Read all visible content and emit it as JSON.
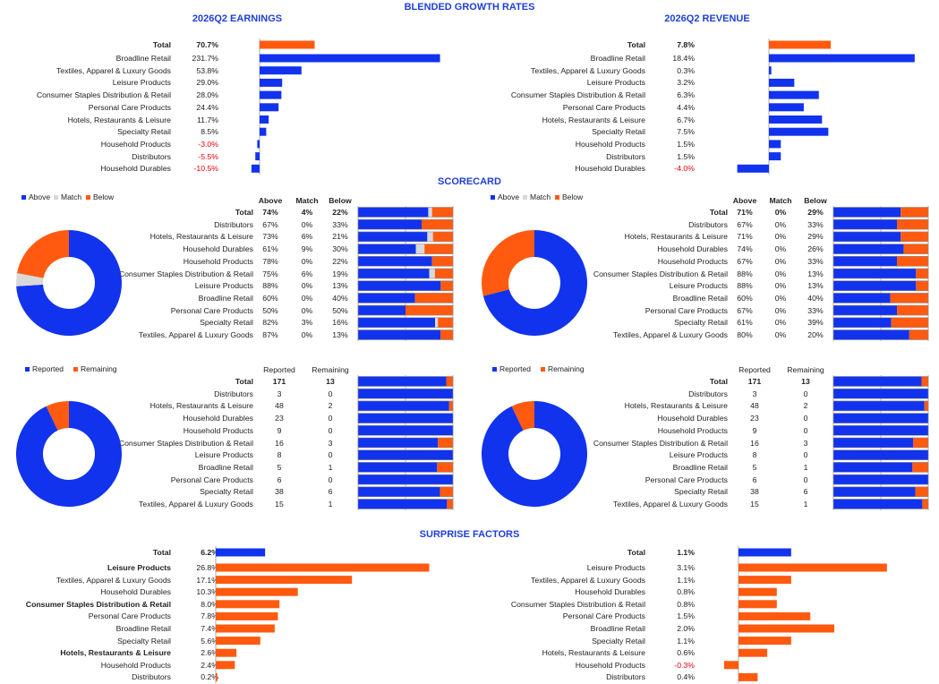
{
  "colors": {
    "above": "#1133ee",
    "match": "#d9d9d9",
    "below": "#ff5a0f",
    "reported": "#1133ee",
    "remaining": "#ff5a0f",
    "neg_text": "#e8000b",
    "header": "#1f3fd6"
  },
  "headers": {
    "main": "BLENDED GROWTH RATES",
    "earnings": "2026Q2 EARNINGS",
    "revenue": "2026Q2 REVENUE",
    "scorecard": "SCORECARD",
    "surprise": "SURPRISE FACTORS"
  },
  "legends": {
    "score": [
      "Above",
      "Match",
      "Below"
    ],
    "report": [
      "Reported",
      "Remaining"
    ]
  },
  "score_cols": [
    "Above",
    "Match",
    "Below"
  ],
  "report_cols": [
    "Reported",
    "Remaining"
  ],
  "chart_data": [
    {
      "type": "bar",
      "id": "earnings_growth",
      "categories": [
        "Total",
        "Broadline Retail",
        "Textiles, Apparel & Luxury Goods",
        "Leisure Products",
        "Consumer Staples Distribution & Retail",
        "Personal Care Products",
        "Hotels, Restaurants & Leisure",
        "Specialty Retail",
        "Household Products",
        "Distributors",
        "Household Durables"
      ],
      "labels": [
        "70.7%",
        "231.7%",
        "53.8%",
        "29.0%",
        "28.0%",
        "24.4%",
        "11.7%",
        "8.5%",
        "-3.0%",
        "-5.5%",
        "-10.5%"
      ],
      "values": [
        70.7,
        231.7,
        53.8,
        29.0,
        28.0,
        24.4,
        11.7,
        8.5,
        -3.0,
        -5.5,
        -10.5
      ]
    },
    {
      "type": "bar",
      "id": "revenue_growth",
      "categories": [
        "Total",
        "Broadline Retail",
        "Textiles, Apparel & Luxury Goods",
        "Leisure Products",
        "Consumer Staples Distribution & Retail",
        "Personal Care Products",
        "Hotels, Restaurants & Leisure",
        "Specialty Retail",
        "Household Products",
        "Distributors",
        "Household Durables"
      ],
      "labels": [
        "7.8%",
        "18.4%",
        "0.3%",
        "3.2%",
        "6.3%",
        "4.4%",
        "6.7%",
        "7.5%",
        "1.5%",
        "1.5%",
        "-4.0%"
      ],
      "values": [
        7.8,
        18.4,
        0.3,
        3.2,
        6.3,
        4.4,
        6.7,
        7.5,
        1.5,
        1.5,
        -4.0
      ]
    },
    {
      "type": "bar",
      "id": "earnings_scorecard",
      "stacked": true,
      "categories": [
        "Total",
        "Distributors",
        "Hotels, Restaurants & Leisure",
        "Household Durables",
        "Household Products",
        "Consumer Staples Distribution & Retail",
        "Leisure Products",
        "Broadline Retail",
        "Personal Care Products",
        "Specialty Retail",
        "Textiles, Apparel & Luxury Goods"
      ],
      "series": [
        {
          "name": "Above",
          "values": [
            74,
            67,
            73,
            61,
            78,
            75,
            88,
            60,
            50,
            82,
            87
          ],
          "labels": [
            "74%",
            "67%",
            "73%",
            "61%",
            "78%",
            "75%",
            "88%",
            "60%",
            "50%",
            "82%",
            "87%"
          ]
        },
        {
          "name": "Match",
          "values": [
            4,
            0,
            6,
            9,
            0,
            6,
            0,
            0,
            0,
            3,
            0
          ],
          "labels": [
            "4%",
            "0%",
            "6%",
            "9%",
            "0%",
            "6%",
            "0%",
            "0%",
            "0%",
            "3%",
            "0%"
          ]
        },
        {
          "name": "Below",
          "values": [
            22,
            33,
            21,
            30,
            22,
            19,
            13,
            40,
            50,
            16,
            13
          ],
          "labels": [
            "22%",
            "33%",
            "21%",
            "30%",
            "22%",
            "19%",
            "13%",
            "40%",
            "50%",
            "16%",
            "13%"
          ]
        }
      ],
      "pie": [
        74,
        4,
        22
      ]
    },
    {
      "type": "bar",
      "id": "revenue_scorecard",
      "stacked": true,
      "categories": [
        "Total",
        "Distributors",
        "Hotels, Restaurants & Leisure",
        "Household Durables",
        "Household Products",
        "Consumer Staples Distribution & Retail",
        "Leisure Products",
        "Broadline Retail",
        "Personal Care Products",
        "Specialty Retail",
        "Textiles, Apparel & Luxury Goods"
      ],
      "series": [
        {
          "name": "Above",
          "values": [
            71,
            67,
            71,
            74,
            67,
            88,
            88,
            60,
            67,
            61,
            80
          ],
          "labels": [
            "71%",
            "67%",
            "71%",
            "74%",
            "67%",
            "88%",
            "88%",
            "60%",
            "67%",
            "61%",
            "80%"
          ]
        },
        {
          "name": "Match",
          "values": [
            0,
            0,
            0,
            0,
            0,
            0,
            0,
            0,
            0,
            0,
            0
          ],
          "labels": [
            "0%",
            "0%",
            "0%",
            "0%",
            "0%",
            "0%",
            "0%",
            "0%",
            "0%",
            "0%",
            "0%"
          ]
        },
        {
          "name": "Below",
          "values": [
            29,
            33,
            29,
            26,
            33,
            13,
            13,
            40,
            33,
            39,
            20
          ],
          "labels": [
            "29%",
            "33%",
            "29%",
            "26%",
            "33%",
            "13%",
            "13%",
            "40%",
            "33%",
            "39%",
            "20%"
          ]
        }
      ],
      "pie": [
        71,
        0,
        29
      ]
    },
    {
      "type": "bar",
      "id": "earnings_reported",
      "stacked": true,
      "categories": [
        "Total",
        "Distributors",
        "Hotels, Restaurants & Leisure",
        "Household Durables",
        "Household Products",
        "Consumer Staples Distribution & Retail",
        "Leisure Products",
        "Broadline Retail",
        "Personal Care Products",
        "Specialty Retail",
        "Textiles, Apparel & Luxury Goods"
      ],
      "series": [
        {
          "name": "Reported",
          "values": [
            171,
            3,
            48,
            23,
            9,
            16,
            8,
            5,
            6,
            38,
            15
          ]
        },
        {
          "name": "Remaining",
          "values": [
            13,
            0,
            2,
            0,
            0,
            3,
            0,
            1,
            0,
            6,
            1
          ]
        }
      ],
      "pie": [
        171,
        13
      ]
    },
    {
      "type": "bar",
      "id": "revenue_reported",
      "stacked": true,
      "categories": [
        "Total",
        "Distributors",
        "Hotels, Restaurants & Leisure",
        "Household Durables",
        "Household Products",
        "Consumer Staples Distribution & Retail",
        "Leisure Products",
        "Broadline Retail",
        "Personal Care Products",
        "Specialty Retail",
        "Textiles, Apparel & Luxury Goods"
      ],
      "series": [
        {
          "name": "Reported",
          "values": [
            171,
            3,
            48,
            23,
            9,
            16,
            8,
            5,
            6,
            38,
            15
          ]
        },
        {
          "name": "Remaining",
          "values": [
            13,
            0,
            2,
            0,
            0,
            3,
            0,
            1,
            0,
            6,
            1
          ]
        }
      ],
      "pie": [
        171,
        13
      ]
    },
    {
      "type": "bar",
      "id": "earnings_surprise",
      "categories": [
        "Total",
        "Leisure Products",
        "Textiles, Apparel & Luxury Goods",
        "Household Durables",
        "Consumer Staples Distribution & Retail",
        "Personal Care Products",
        "Broadline Retail",
        "Specialty Retail",
        "Hotels, Restaurants & Leisure",
        "Household Products",
        "Distributors"
      ],
      "labels": [
        "6.2%",
        "26.8%",
        "17.1%",
        "10.3%",
        "8.0%",
        "7.8%",
        "7.4%",
        "5.6%",
        "2.6%",
        "2.4%",
        "0.2%"
      ],
      "values": [
        6.2,
        26.8,
        17.1,
        10.3,
        8.0,
        7.8,
        7.4,
        5.6,
        2.6,
        2.4,
        0.2
      ]
    },
    {
      "type": "bar",
      "id": "revenue_surprise",
      "categories": [
        "Total",
        "Leisure Products",
        "Textiles, Apparel & Luxury Goods",
        "Household Durables",
        "Consumer Staples Distribution & Retail",
        "Personal Care Products",
        "Broadline Retail",
        "Specialty Retail",
        "Hotels, Restaurants & Leisure",
        "Household Products",
        "Distributors"
      ],
      "labels": [
        "1.1%",
        "3.1%",
        "1.1%",
        "0.8%",
        "0.8%",
        "1.5%",
        "2.0%",
        "1.1%",
        "0.6%",
        "-0.3%",
        "0.4%"
      ],
      "values": [
        1.1,
        3.1,
        1.1,
        0.8,
        0.8,
        1.5,
        2.0,
        1.1,
        0.6,
        -0.3,
        0.4
      ]
    }
  ]
}
